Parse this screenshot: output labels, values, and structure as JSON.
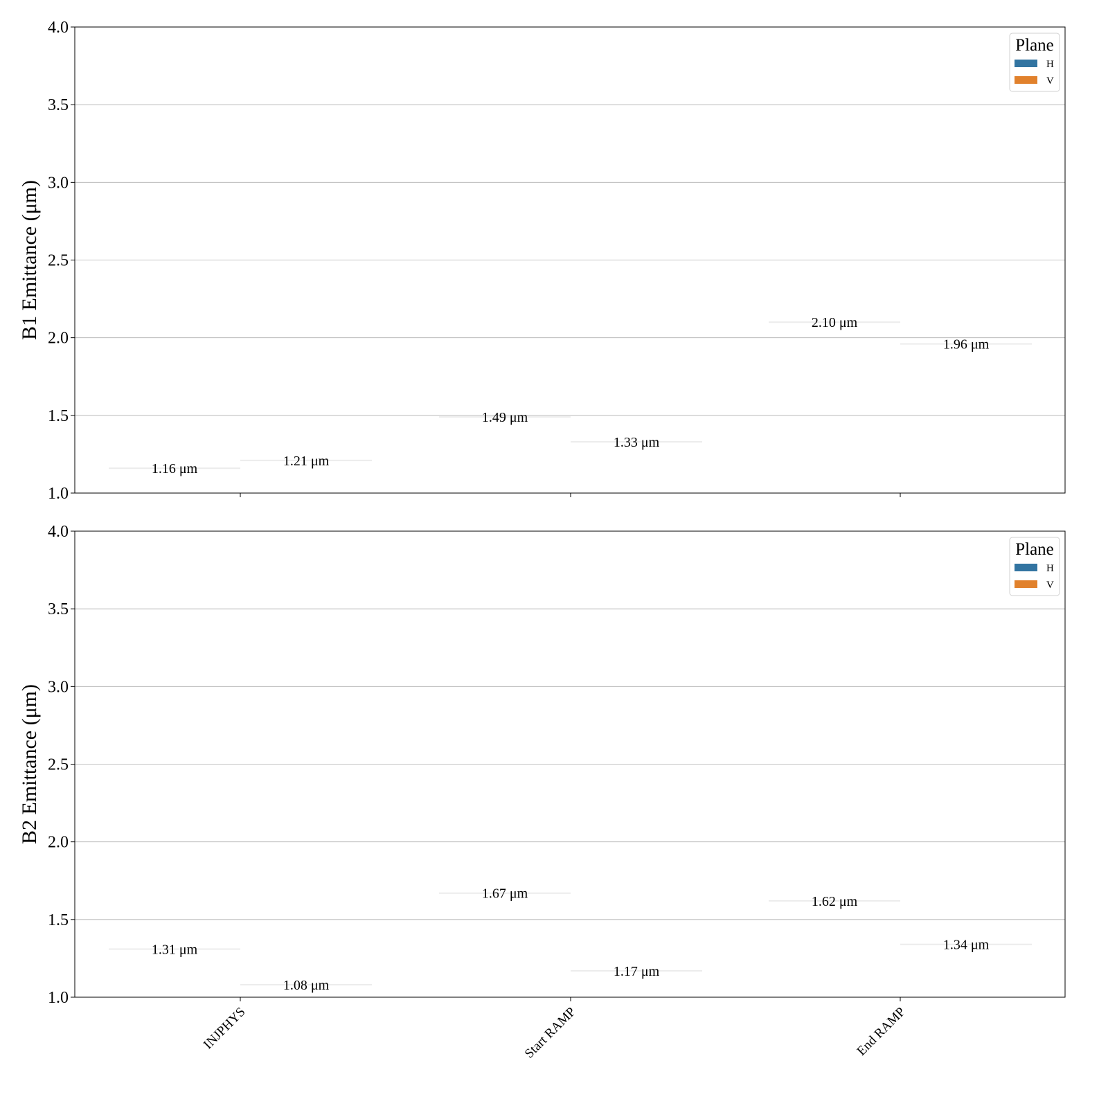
{
  "chart_data": [
    {
      "type": "bar",
      "ylabel": "B1 Emittance (μm)",
      "ylim": [
        1.0,
        4.0
      ],
      "yticks": [
        "1.0",
        "1.5",
        "2.0",
        "2.5",
        "3.0",
        "3.5",
        "4.0"
      ],
      "grid": "horizontal",
      "categories": [
        "INJPHYS",
        "Start RAMP",
        "End RAMP"
      ],
      "legend": {
        "title": "Plane",
        "placement": "top-right"
      },
      "series": [
        {
          "name": "H",
          "color": "#3274a1",
          "values": [
            1.16,
            1.49,
            2.1
          ],
          "labels": [
            "1.16 μm",
            "1.49 μm",
            "2.10 μm"
          ]
        },
        {
          "name": "V",
          "color": "#e1812c",
          "values": [
            1.21,
            1.33,
            1.96
          ],
          "labels": [
            "1.21 μm",
            "1.33 μm",
            "1.96 μm"
          ]
        }
      ]
    },
    {
      "type": "bar",
      "ylabel": "B2 Emittance (μm)",
      "ylim": [
        1.0,
        4.0
      ],
      "yticks": [
        "1.0",
        "1.5",
        "2.0",
        "2.5",
        "3.0",
        "3.5",
        "4.0"
      ],
      "grid": "horizontal",
      "categories": [
        "INJPHYS",
        "Start RAMP",
        "End RAMP"
      ],
      "legend": {
        "title": "Plane",
        "placement": "top-right"
      },
      "series": [
        {
          "name": "H",
          "color": "#3274a1",
          "values": [
            1.31,
            1.67,
            1.62
          ],
          "labels": [
            "1.31 μm",
            "1.67 μm",
            "1.62 μm"
          ]
        },
        {
          "name": "V",
          "color": "#e1812c",
          "values": [
            1.08,
            1.17,
            1.34
          ],
          "labels": [
            "1.08 μm",
            "1.17 μm",
            "1.34 μm"
          ]
        }
      ]
    }
  ]
}
